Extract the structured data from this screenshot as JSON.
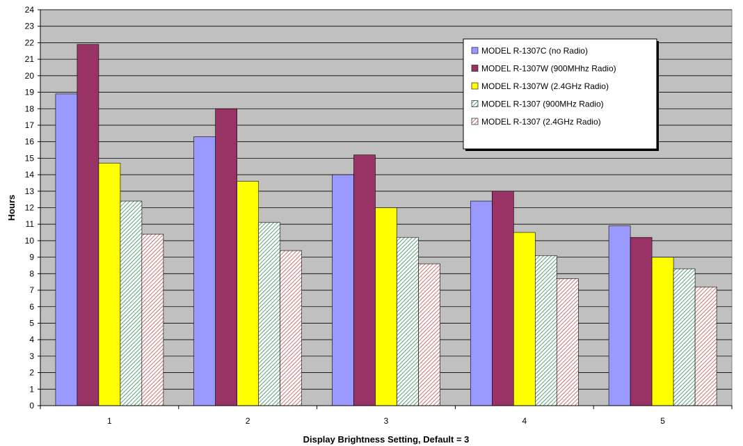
{
  "chart_data": {
    "type": "bar",
    "title": "",
    "xlabel": "Display Brightness Setting, Default = 3",
    "ylabel": "Hours",
    "ylim": [
      0,
      24
    ],
    "y_ticks": [
      "0",
      "1",
      "2",
      "3",
      "4",
      "5",
      "6",
      "7",
      "8",
      "9",
      "10",
      "11",
      "12",
      "13",
      "14",
      "15",
      "16",
      "17",
      "18",
      "19",
      "20",
      "21",
      "22",
      "23",
      "24"
    ],
    "grid": true,
    "legend_position": "top-right",
    "categories": [
      "1",
      "2",
      "3",
      "4",
      "5"
    ],
    "series": [
      {
        "name": "MODEL R-1307C (no Radio)",
        "color": "#9999ff",
        "pattern": "solid",
        "values": [
          18.9,
          16.3,
          14.0,
          12.4,
          10.9
        ]
      },
      {
        "name": "MODEL R-1307W (900MHhz Radio)",
        "color": "#993366",
        "pattern": "solid",
        "values": [
          21.9,
          18.0,
          15.2,
          13.0,
          10.2
        ]
      },
      {
        "name": "MODEL R-1307W (2.4GHz Radio)",
        "color": "#ffff00",
        "pattern": "solid",
        "values": [
          14.7,
          13.6,
          12.0,
          10.5,
          9.0
        ]
      },
      {
        "name": "MODEL R-1307 (900MHz Radio)",
        "color": "#2e8b57",
        "pattern": "hatch",
        "values": [
          12.4,
          11.1,
          10.2,
          9.1,
          8.3
        ]
      },
      {
        "name": "MODEL R-1307 (2.4GHz Radio)",
        "color": "#c0504d",
        "pattern": "hatch",
        "values": [
          10.4,
          9.4,
          8.6,
          7.7,
          7.2
        ]
      }
    ],
    "plot_background": "#c0c0c0"
  }
}
